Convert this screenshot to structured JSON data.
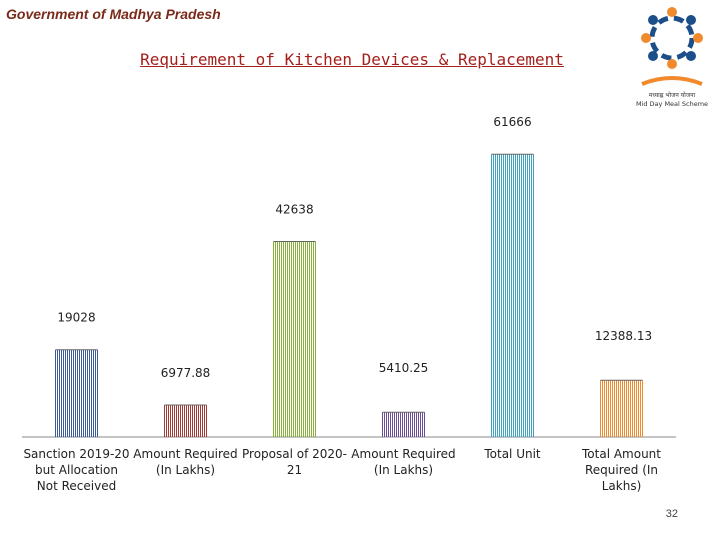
{
  "header": {
    "org": "Government of Madhya Pradesh"
  },
  "slide": {
    "title": "Requirement of Kitchen Devices & Replacement",
    "page_number": "32"
  },
  "logo": {
    "icon": "mid-day-meal-logo",
    "hindi_text": "मध्याह्न भोजन योजना",
    "caption": "Mid Day Meal Scheme"
  },
  "chart_data": {
    "type": "bar",
    "categories": [
      "Sanction 2019-20 but Allocation Not Received",
      "Amount Required (In Lakhs)",
      "Proposal of 2020-21",
      "Amount Required (In Lakhs)",
      "Total Unit",
      "Total Amount Required (In Lakhs)"
    ],
    "category_lines": [
      [
        "Sanction 2019-20",
        "but Allocation",
        "Not Received"
      ],
      [
        "Amount Required",
        "(In Lakhs)"
      ],
      [
        "Proposal of 2020-",
        "21"
      ],
      [
        "Amount Required",
        "(In Lakhs)"
      ],
      [
        "Total Unit"
      ],
      [
        "Total Amount",
        "Required (In",
        "Lakhs)"
      ]
    ],
    "values": [
      19028,
      6977.88,
      42638,
      5410.25,
      61666,
      12388.13
    ],
    "data_labels": [
      "19028",
      "6977.88",
      "42638",
      "5410.25",
      "61666",
      "12388.13"
    ],
    "colors": [
      "#3a5a9c",
      "#a33a36",
      "#8ab03c",
      "#6a4e96",
      "#3ca6c2",
      "#f08a2c"
    ],
    "ylim": [
      0,
      70000
    ],
    "grid": false,
    "legend": "none"
  }
}
